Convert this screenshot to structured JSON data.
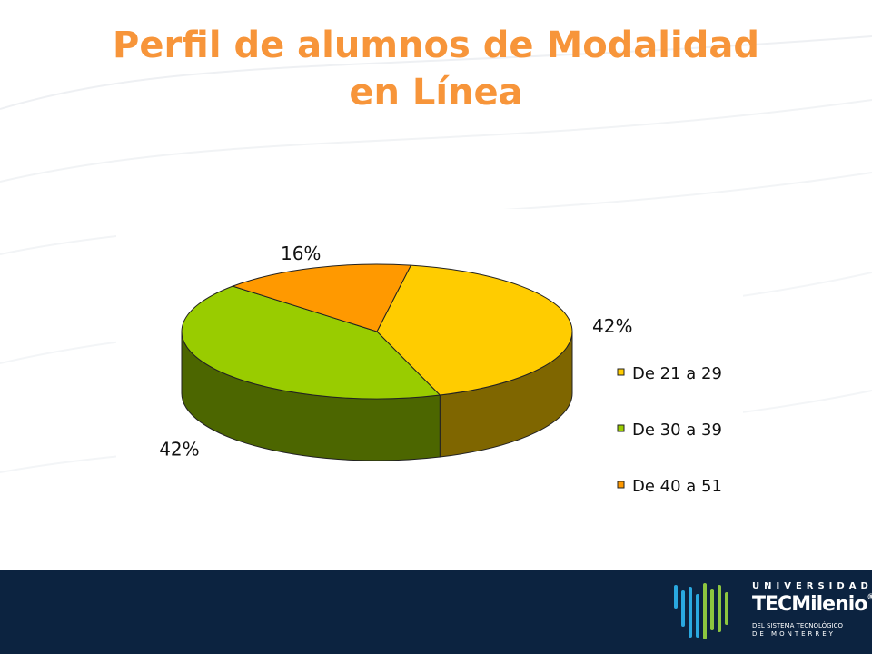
{
  "slide": {
    "title_line1": "Perfil de alumnos de Modalidad",
    "title_line2": "en Línea"
  },
  "footer": {
    "logo": {
      "line1": "UNIVERSIDAD",
      "brand_a": "TEC",
      "brand_b": "Milenio",
      "registered": "®",
      "line3": "DEL SISTEMA TECNOLÓGICO",
      "line4": "DE MONTERREY"
    },
    "colors": {
      "background": "#0c2340",
      "mark_blue": "#2aa8e0",
      "mark_green": "#8dc63f"
    }
  },
  "chart_data": {
    "type": "pie",
    "style": "3d",
    "title": "",
    "series": [
      {
        "label": "De 21 a 29",
        "value": 42,
        "data_label": "42%",
        "color": "#ffcc00",
        "side_color": "#7f6600"
      },
      {
        "label": "De 30 a 39",
        "value": 42,
        "data_label": "42%",
        "color": "#99cc00",
        "side_color": "#4c6600"
      },
      {
        "label": "De 40 a 51",
        "value": 16,
        "data_label": "16%",
        "color": "#ff9900",
        "side_color": "#7f4c00"
      }
    ],
    "legend_position": "right"
  }
}
